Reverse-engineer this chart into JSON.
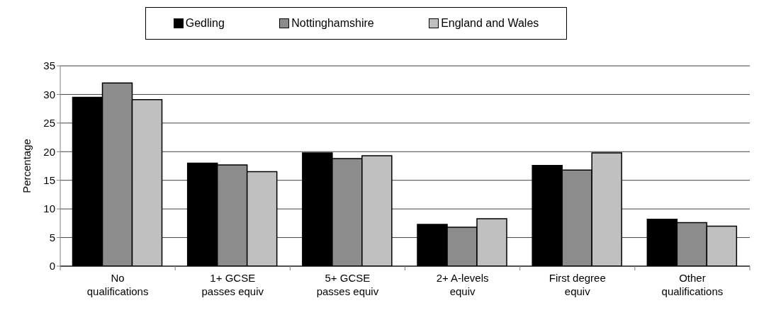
{
  "chart_data": {
    "type": "bar",
    "ylabel": "Percentage",
    "categories": [
      "No qualifications",
      "1+ GCSE passes equiv",
      "5+ GCSE passes equiv",
      "2+ A-levels equiv",
      "First degree equiv",
      "Other qualifications"
    ],
    "series": [
      {
        "name": "Gedling",
        "color": "#000000",
        "values": [
          29.5,
          18.0,
          19.8,
          7.3,
          17.6,
          8.2
        ]
      },
      {
        "name": "Nottinghamshire",
        "color": "#8c8c8c",
        "values": [
          32.0,
          17.7,
          18.8,
          6.8,
          16.8,
          7.6
        ]
      },
      {
        "name": "England and Wales",
        "color": "#c0c0c0",
        "values": [
          29.1,
          16.5,
          19.3,
          8.3,
          19.8,
          7.0
        ]
      }
    ],
    "ylim": [
      0,
      35
    ],
    "yticks": [
      0,
      5,
      10,
      15,
      20,
      25,
      30,
      35
    ],
    "grid": "y",
    "legend": "top"
  }
}
